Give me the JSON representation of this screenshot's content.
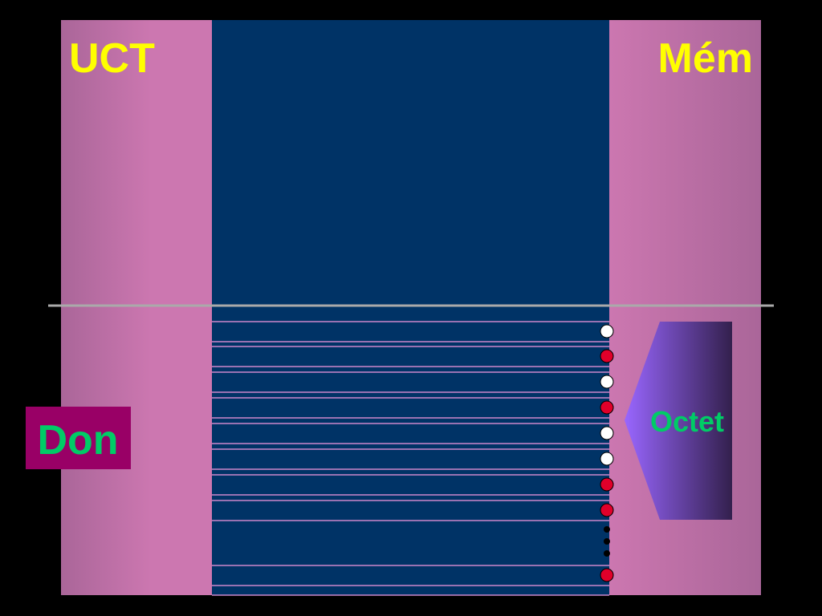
{
  "labels": {
    "cpu": "UCT",
    "memory": "Mém",
    "data": "Don",
    "byte": "Octet"
  }
}
